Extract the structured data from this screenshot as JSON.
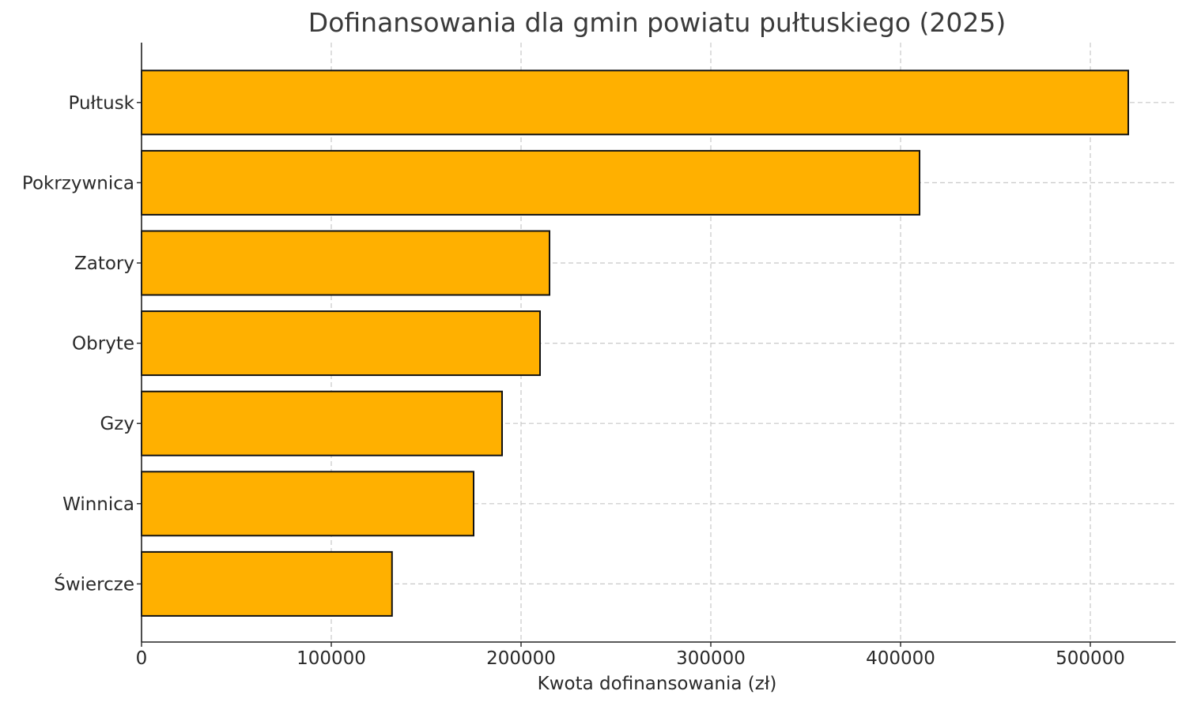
{
  "chart_data": {
    "type": "bar",
    "orientation": "horizontal",
    "title": "Dofinansowania dla gmin powiatu pułtuskiego (2025)",
    "xlabel": "Kwota dofinansowania (zł)",
    "ylabel": "",
    "categories": [
      "Pułtusk",
      "Pokrzywnica",
      "Zatory",
      "Obryte",
      "Gzy",
      "Winnica",
      "Świercze"
    ],
    "values": [
      520000,
      410000,
      215000,
      210000,
      190000,
      175000,
      132000
    ],
    "xlim": [
      0,
      545000
    ],
    "xticks": [
      0,
      100000,
      200000,
      300000,
      400000,
      500000
    ],
    "xtick_labels": [
      "0",
      "100000",
      "200000",
      "300000",
      "400000",
      "500000"
    ],
    "grid": true,
    "colors": {
      "bar_fill": "#FFB000",
      "bar_edge": "#111111"
    }
  }
}
